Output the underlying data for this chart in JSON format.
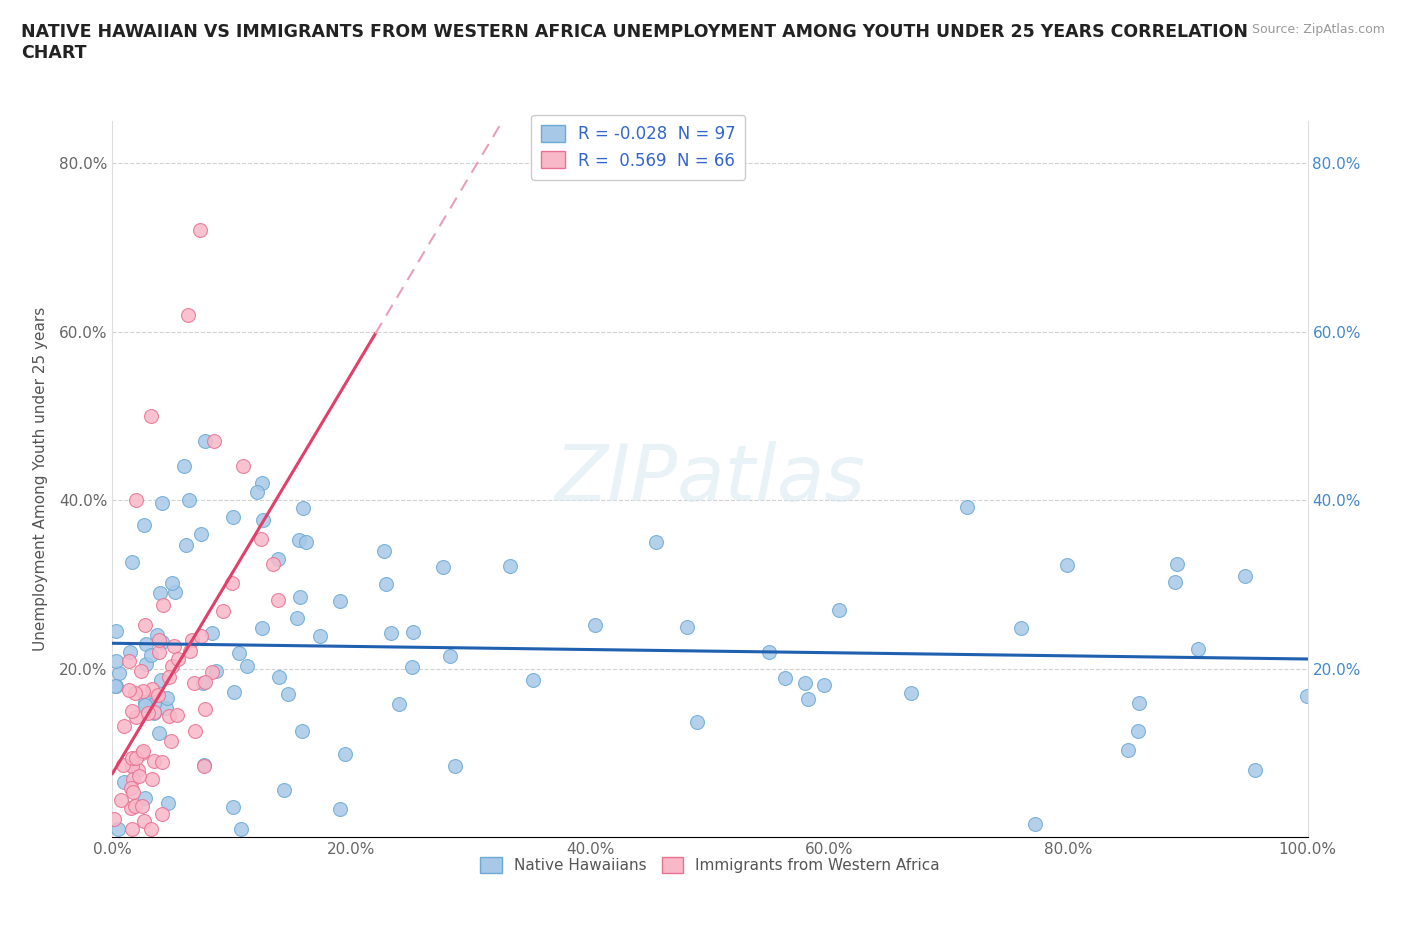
{
  "title_line1": "NATIVE HAWAIIAN VS IMMIGRANTS FROM WESTERN AFRICA UNEMPLOYMENT AMONG YOUTH UNDER 25 YEARS CORRELATION",
  "title_line2": "CHART",
  "source": "Source: ZipAtlas.com",
  "ylabel": "Unemployment Among Youth under 25 years",
  "xlim": [
    0.0,
    1.0
  ],
  "ylim": [
    0.0,
    0.85
  ],
  "x_ticks": [
    0.0,
    0.2,
    0.4,
    0.6,
    0.8,
    1.0
  ],
  "x_tick_labels": [
    "0.0%",
    "20.0%",
    "40.0%",
    "60.0%",
    "80.0%",
    "100.0%"
  ],
  "y_ticks": [
    0.0,
    0.2,
    0.4,
    0.6,
    0.8
  ],
  "y_tick_left_labels": [
    "",
    "20.0%",
    "40.0%",
    "60.0%",
    "80.0%"
  ],
  "y_tick_right_labels": [
    "",
    "20.0%",
    "40.0%",
    "60.0%",
    "80.0%"
  ],
  "r_native": -0.028,
  "n_native": 97,
  "r_western": 0.569,
  "n_western": 66,
  "native_color": "#a8c8e8",
  "native_edge_color": "#6aaad4",
  "western_color": "#f8b8c8",
  "western_edge_color": "#e87090",
  "native_line_color": "#2060b0",
  "western_line_color": "#e0406a",
  "western_dash_color": "#e8a0b8",
  "watermark_text": "ZIPatlas",
  "marker_size": 10
}
